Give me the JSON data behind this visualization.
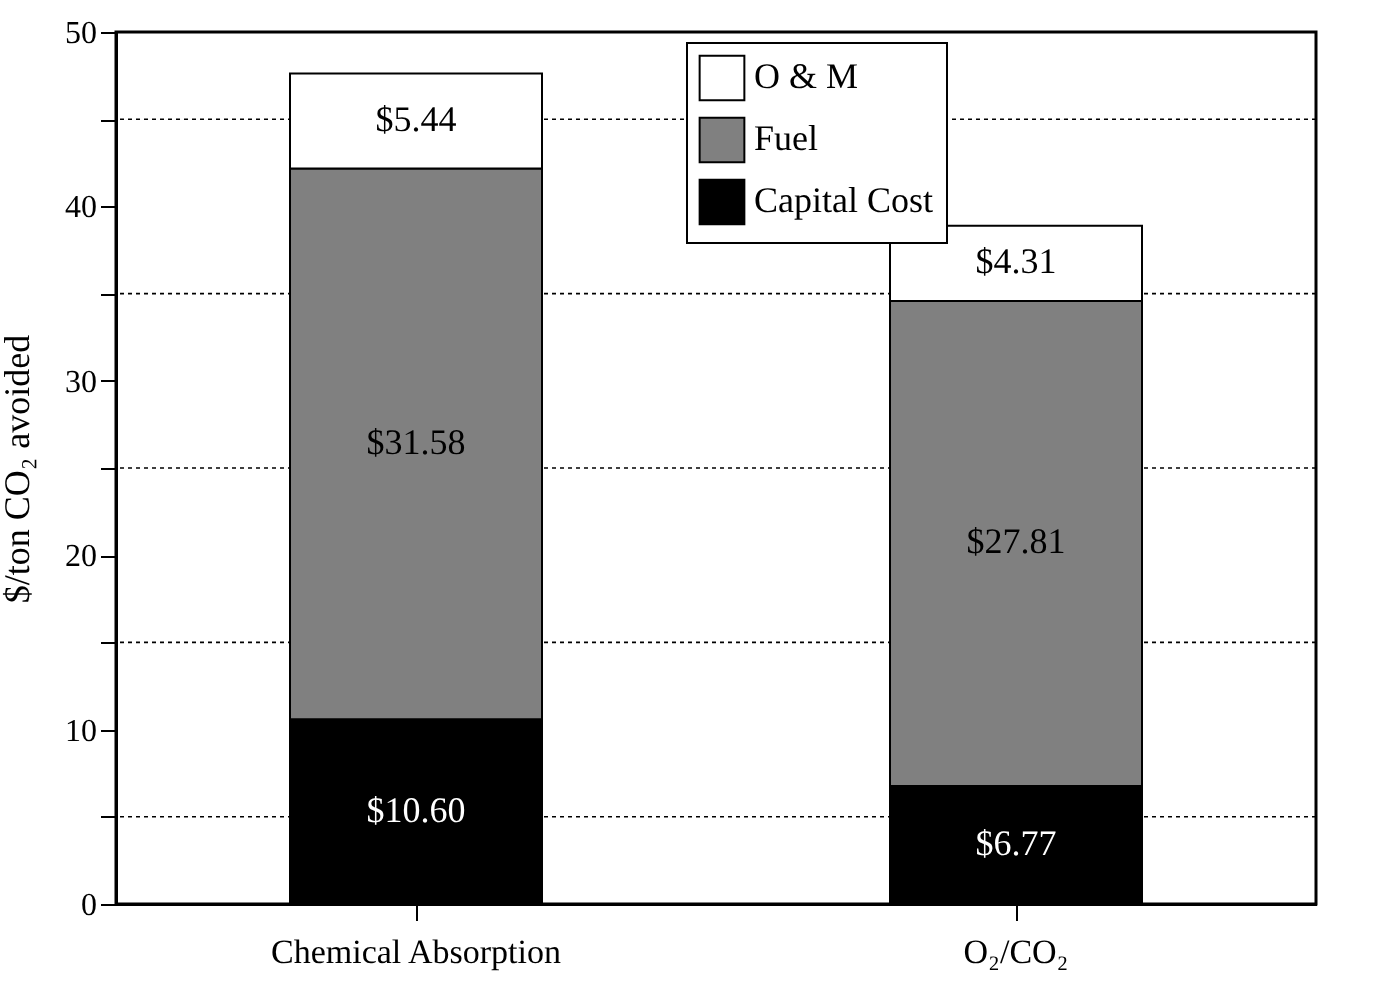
{
  "chart_data": {
    "type": "bar",
    "stacked": true,
    "ylabel": "$/ton CO₂ avoided",
    "categories": [
      "Chemical Absorption",
      "O₂/CO₂"
    ],
    "series": [
      {
        "name": "Capital Cost",
        "color": "#000000",
        "values": [
          10.6,
          6.77
        ],
        "value_labels": [
          "$10.60",
          "$6.77"
        ]
      },
      {
        "name": "Fuel",
        "color": "#808080",
        "values": [
          31.58,
          27.81
        ],
        "value_labels": [
          "$31.58",
          "$27.81"
        ]
      },
      {
        "name": "O & M",
        "color": "#ffffff",
        "values": [
          5.44,
          4.31
        ],
        "value_labels": [
          "$5.44",
          "$4.31"
        ]
      }
    ],
    "ylim": [
      0,
      50
    ],
    "yticks": [
      0,
      {
        "value": 5,
        "label": null
      },
      10,
      {
        "value": 15,
        "label": null
      },
      20,
      {
        "value": 25,
        "label": null
      },
      30,
      {
        "value": 35,
        "label": null
      },
      40,
      {
        "value": 45,
        "label": null
      },
      50
    ],
    "grid": "y",
    "legend": "top right"
  }
}
